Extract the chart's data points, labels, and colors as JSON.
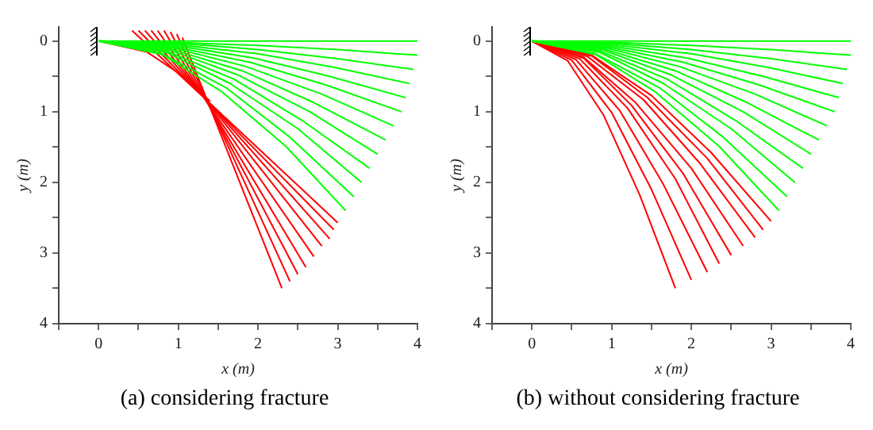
{
  "chart_data": [
    {
      "type": "line",
      "title": "(a) considering fracture",
      "xlabel": "x (m)",
      "ylabel": "y (m)",
      "xlim": [
        -0.5,
        4
      ],
      "ylim": [
        4,
        -0.2
      ],
      "xticks": [
        {
          "value": -0.5,
          "label": null
        },
        0,
        {
          "value": 0.5,
          "label": null
        },
        1,
        {
          "value": 1.5,
          "label": null
        },
        2,
        {
          "value": 2.5,
          "label": null
        },
        3,
        {
          "value": 3.5,
          "label": null
        },
        4
      ],
      "yticks": [
        0,
        {
          "value": 0.5,
          "label": null
        },
        1,
        {
          "value": 1.5,
          "label": null
        },
        2,
        {
          "value": 2.5,
          "label": null
        },
        3,
        {
          "value": 3.5,
          "label": null
        },
        4
      ],
      "grid": false,
      "legend": false,
      "marker": "none",
      "line_style": "solid",
      "series": [
        {
          "color": "#00ff00",
          "x": [
            0,
            1,
            2,
            3,
            4
          ],
          "values": [
            0,
            0,
            0,
            0,
            0
          ]
        },
        {
          "color": "#00ff00",
          "x": [
            0,
            1,
            2,
            3,
            4
          ],
          "values": [
            0,
            0.02,
            0.06,
            0.12,
            0.2
          ]
        },
        {
          "color": "#00ff00",
          "x": [
            0,
            1,
            2,
            3,
            3.95
          ],
          "values": [
            0,
            0.03,
            0.12,
            0.25,
            0.4
          ]
        },
        {
          "color": "#00ff00",
          "x": [
            0,
            1,
            2,
            2.95,
            3.9
          ],
          "values": [
            0,
            0.05,
            0.18,
            0.37,
            0.6
          ]
        },
        {
          "color": "#00ff00",
          "x": [
            0,
            0.95,
            1.95,
            2.9,
            3.85
          ],
          "values": [
            0,
            0.06,
            0.24,
            0.5,
            0.8
          ]
        },
        {
          "color": "#00ff00",
          "x": [
            0,
            0.95,
            1.9,
            2.85,
            3.8
          ],
          "values": [
            0,
            0.08,
            0.3,
            0.62,
            1.0
          ]
        },
        {
          "color": "#00ff00",
          "x": [
            0,
            0.95,
            1.85,
            2.8,
            3.7
          ],
          "values": [
            0,
            0.1,
            0.36,
            0.75,
            1.2
          ]
        },
        {
          "color": "#00ff00",
          "x": [
            0,
            0.9,
            1.8,
            2.7,
            3.6
          ],
          "values": [
            0,
            0.11,
            0.42,
            0.87,
            1.4
          ]
        },
        {
          "color": "#00ff00",
          "x": [
            0,
            0.9,
            1.75,
            2.65,
            3.5
          ],
          "values": [
            0,
            0.13,
            0.48,
            1.0,
            1.6
          ]
        },
        {
          "color": "#00ff00",
          "x": [
            0,
            0.85,
            1.7,
            2.55,
            3.4
          ],
          "values": [
            0,
            0.14,
            0.54,
            1.12,
            1.8
          ]
        },
        {
          "color": "#00ff00",
          "x": [
            0,
            0.85,
            1.65,
            2.5,
            3.3
          ],
          "values": [
            0,
            0.16,
            0.6,
            1.24,
            2.0
          ]
        },
        {
          "color": "#00ff00",
          "x": [
            0,
            0.8,
            1.6,
            2.4,
            3.2
          ],
          "values": [
            0,
            0.18,
            0.66,
            1.36,
            2.2
          ]
        },
        {
          "color": "#00ff00",
          "x": [
            0,
            0.8,
            1.55,
            2.35,
            3.1
          ],
          "values": [
            0,
            0.19,
            0.72,
            1.49,
            2.4
          ]
        },
        {
          "color": "#ff0000",
          "x": [
            0,
            0.6,
            1.0,
            1.4
          ],
          "values": [
            0,
            0.15,
            0.45,
            0.85
          ]
        },
        {
          "color": "#ff0000",
          "x": [
            0.42,
            3.0
          ],
          "values": [
            -0.15,
            2.57
          ]
        },
        {
          "color": "#ff0000",
          "x": [
            0.5,
            2.95
          ],
          "values": [
            -0.15,
            2.67
          ]
        },
        {
          "color": "#ff0000",
          "x": [
            0.58,
            2.9
          ],
          "values": [
            -0.15,
            2.8
          ]
        },
        {
          "color": "#ff0000",
          "x": [
            0.66,
            2.8
          ],
          "values": [
            -0.15,
            2.9
          ]
        },
        {
          "color": "#ff0000",
          "x": [
            0.74,
            2.7
          ],
          "values": [
            -0.15,
            3.05
          ]
        },
        {
          "color": "#ff0000",
          "x": [
            0.82,
            2.6
          ],
          "values": [
            -0.15,
            3.2
          ]
        },
        {
          "color": "#ff0000",
          "x": [
            0.9,
            2.5
          ],
          "values": [
            -0.13,
            3.3
          ]
        },
        {
          "color": "#ff0000",
          "x": [
            0.98,
            2.4
          ],
          "values": [
            -0.1,
            3.4
          ]
        },
        {
          "color": "#ff0000",
          "x": [
            1.05,
            2.3
          ],
          "values": [
            -0.05,
            3.5
          ]
        }
      ]
    },
    {
      "type": "line",
      "title": "(b) without considering fracture",
      "xlabel": "x (m)",
      "ylabel": "y (m)",
      "xlim": [
        -0.5,
        4
      ],
      "ylim": [
        4,
        -0.2
      ],
      "xticks": [
        {
          "value": -0.5,
          "label": null
        },
        0,
        {
          "value": 0.5,
          "label": null
        },
        1,
        {
          "value": 1.5,
          "label": null
        },
        2,
        {
          "value": 2.5,
          "label": null
        },
        3,
        {
          "value": 3.5,
          "label": null
        },
        4
      ],
      "yticks": [
        0,
        {
          "value": 0.5,
          "label": null
        },
        1,
        {
          "value": 1.5,
          "label": null
        },
        2,
        {
          "value": 2.5,
          "label": null
        },
        3,
        {
          "value": 3.5,
          "label": null
        },
        4
      ],
      "grid": false,
      "legend": false,
      "marker": "none",
      "line_style": "solid",
      "series": [
        {
          "color": "#00ff00",
          "x": [
            0,
            1,
            2,
            3,
            4
          ],
          "values": [
            0,
            0,
            0,
            0,
            0
          ]
        },
        {
          "color": "#00ff00",
          "x": [
            0,
            1,
            2,
            3,
            4
          ],
          "values": [
            0,
            0.02,
            0.06,
            0.12,
            0.2
          ]
        },
        {
          "color": "#00ff00",
          "x": [
            0,
            1,
            2,
            3,
            3.95
          ],
          "values": [
            0,
            0.03,
            0.12,
            0.25,
            0.4
          ]
        },
        {
          "color": "#00ff00",
          "x": [
            0,
            1,
            2,
            2.95,
            3.9
          ],
          "values": [
            0,
            0.05,
            0.18,
            0.37,
            0.6
          ]
        },
        {
          "color": "#00ff00",
          "x": [
            0,
            0.95,
            1.95,
            2.9,
            3.85
          ],
          "values": [
            0,
            0.06,
            0.24,
            0.5,
            0.8
          ]
        },
        {
          "color": "#00ff00",
          "x": [
            0,
            0.95,
            1.9,
            2.85,
            3.8
          ],
          "values": [
            0,
            0.08,
            0.3,
            0.62,
            1.0
          ]
        },
        {
          "color": "#00ff00",
          "x": [
            0,
            0.95,
            1.85,
            2.8,
            3.7
          ],
          "values": [
            0,
            0.1,
            0.36,
            0.75,
            1.2
          ]
        },
        {
          "color": "#00ff00",
          "x": [
            0,
            0.9,
            1.8,
            2.7,
            3.6
          ],
          "values": [
            0,
            0.11,
            0.42,
            0.87,
            1.4
          ]
        },
        {
          "color": "#00ff00",
          "x": [
            0,
            0.9,
            1.75,
            2.65,
            3.5
          ],
          "values": [
            0,
            0.13,
            0.48,
            1.0,
            1.6
          ]
        },
        {
          "color": "#00ff00",
          "x": [
            0,
            0.85,
            1.7,
            2.55,
            3.4
          ],
          "values": [
            0,
            0.14,
            0.54,
            1.12,
            1.8
          ]
        },
        {
          "color": "#00ff00",
          "x": [
            0,
            0.85,
            1.65,
            2.5,
            3.3
          ],
          "values": [
            0,
            0.16,
            0.6,
            1.24,
            2.0
          ]
        },
        {
          "color": "#00ff00",
          "x": [
            0,
            0.8,
            1.6,
            2.4,
            3.2
          ],
          "values": [
            0,
            0.18,
            0.66,
            1.36,
            2.2
          ]
        },
        {
          "color": "#00ff00",
          "x": [
            0,
            0.8,
            1.55,
            2.35,
            3.1
          ],
          "values": [
            0,
            0.19,
            0.72,
            1.49,
            2.4
          ]
        },
        {
          "color": "#ff0000",
          "x": [
            0,
            0.75,
            1.5,
            2.25,
            3.0
          ],
          "values": [
            0,
            0.2,
            0.77,
            1.58,
            2.55
          ]
        },
        {
          "color": "#ff0000",
          "x": [
            0,
            0.75,
            1.45,
            2.2,
            2.9
          ],
          "values": [
            0,
            0.21,
            0.8,
            1.66,
            2.67
          ]
        },
        {
          "color": "#ff0000",
          "x": [
            0,
            0.7,
            1.4,
            2.1,
            2.8
          ],
          "values": [
            0,
            0.22,
            0.83,
            1.72,
            2.78
          ]
        },
        {
          "color": "#ff0000",
          "x": [
            0,
            0.65,
            1.3,
            2.0,
            2.65
          ],
          "values": [
            0,
            0.23,
            0.87,
            1.8,
            2.9
          ]
        },
        {
          "color": "#ff0000",
          "x": [
            0,
            0.65,
            1.25,
            1.9,
            2.5
          ],
          "values": [
            0,
            0.24,
            0.91,
            1.88,
            3.03
          ]
        },
        {
          "color": "#ff0000",
          "x": [
            0,
            0.6,
            1.2,
            1.8,
            2.35
          ],
          "values": [
            0,
            0.25,
            0.95,
            1.95,
            3.15
          ]
        },
        {
          "color": "#ff0000",
          "x": [
            0,
            0.55,
            1.1,
            1.65,
            2.2
          ],
          "values": [
            0,
            0.26,
            0.98,
            2.03,
            3.27
          ]
        },
        {
          "color": "#ff0000",
          "x": [
            0,
            0.5,
            1.0,
            1.5,
            2.0
          ],
          "values": [
            0,
            0.27,
            1.01,
            2.1,
            3.38
          ]
        },
        {
          "color": "#ff0000",
          "x": [
            0,
            0.45,
            0.9,
            1.35,
            1.8
          ],
          "values": [
            0,
            0.28,
            1.05,
            2.17,
            3.5
          ]
        }
      ]
    }
  ]
}
